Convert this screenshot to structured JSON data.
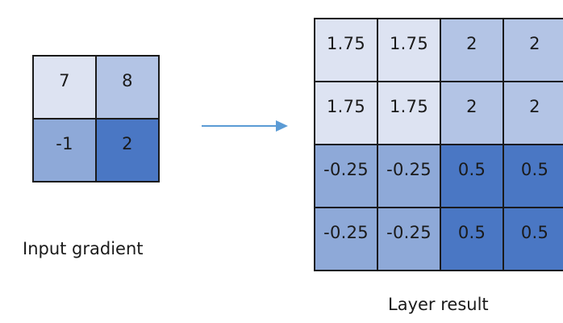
{
  "input_grid": {
    "values": [
      "7",
      "8",
      "-1",
      "2"
    ],
    "colors": [
      "#dde3f2",
      "#b3c4e5",
      "#8ea9d8",
      "#4a77c4"
    ]
  },
  "result_grid": {
    "values": [
      "1.75",
      "1.75",
      "2",
      "2",
      "1.75",
      "1.75",
      "2",
      "2",
      "-0.25",
      "-0.25",
      "0.5",
      "0.5",
      "-0.25",
      "-0.25",
      "0.5",
      "0.5"
    ],
    "colors": [
      "#dde3f2",
      "#dde3f2",
      "#b3c4e5",
      "#b3c4e5",
      "#dde3f2",
      "#dde3f2",
      "#b3c4e5",
      "#b3c4e5",
      "#8ea9d8",
      "#8ea9d8",
      "#4a77c4",
      "#4a77c4",
      "#8ea9d8",
      "#8ea9d8",
      "#4a77c4",
      "#4a77c4"
    ]
  },
  "labels": {
    "input": "Input gradient",
    "result": "Layer result"
  },
  "arrow_color": "#5b9bd5"
}
